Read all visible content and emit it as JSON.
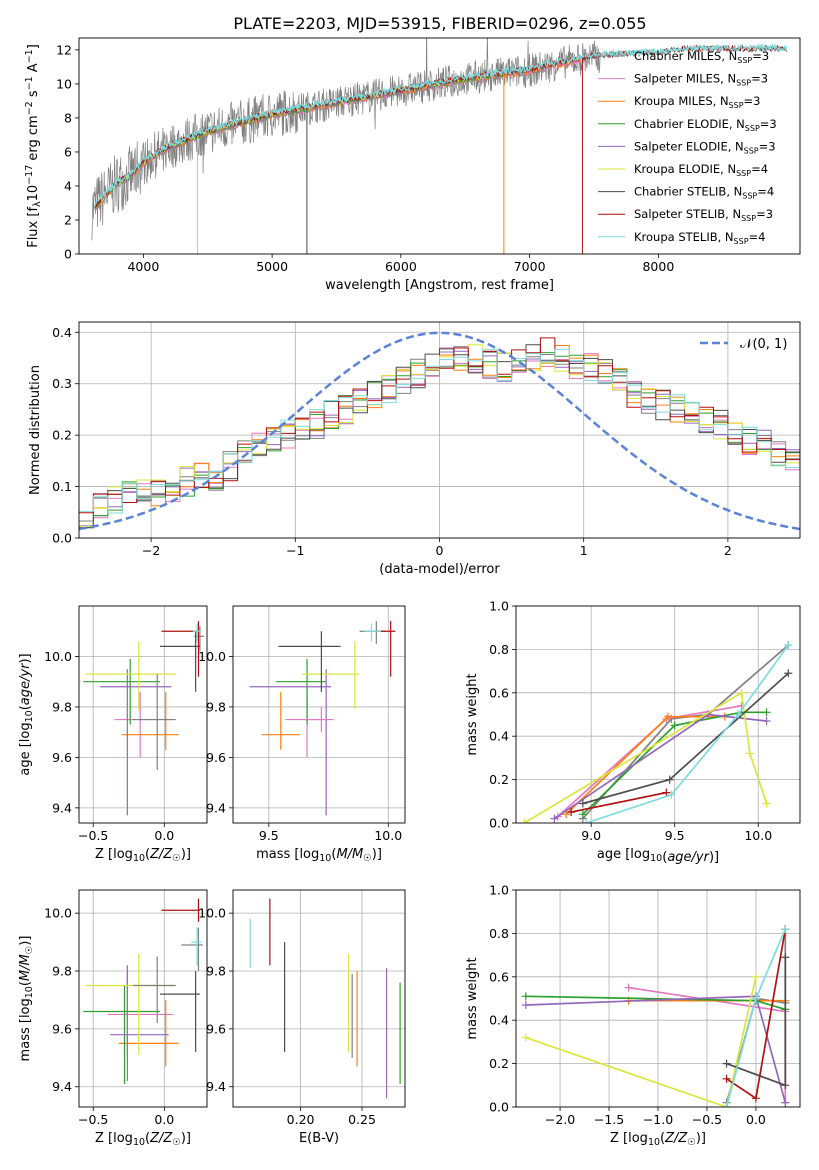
{
  "title": "PLATE=2203, MJD=53915, FIBERID=0296, z=0.055",
  "colors": {
    "Chabrier MILES": "#808080",
    "Salpeter MILES": "#e377c2",
    "Kroupa MILES": "#ff7f0e",
    "Chabrier ELODIE": "#2ca02c",
    "Salpeter ELODIE": "#9467bd",
    "Kroupa ELODIE": "#dbe63a",
    "Chabrier STELIB": "#4d4d4d",
    "Salpeter STELIB": "#b20f0f",
    "Kroupa STELIB": "#7fdbdb",
    "data": "#7f7f7f",
    "normal": "#5b84d6"
  },
  "chart_data": [
    {
      "id": "spectrum",
      "type": "line",
      "xlabel": "wavelength [Angstrom, rest frame]",
      "ylabel": "Flux [f_λ10^-17 erg cm^-2 s^-1 A^-1]",
      "xlim": [
        3500,
        9100
      ],
      "ylim": [
        0,
        12.7
      ],
      "xticks": [
        "4000",
        "5000",
        "6000",
        "7000",
        "8000"
      ],
      "yticks": [
        "0",
        "2",
        "4",
        "6",
        "8",
        "10",
        "12"
      ],
      "legend": [
        {
          "name": "Chabrier MILES",
          "n": "3"
        },
        {
          "name": "Salpeter MILES",
          "n": "3"
        },
        {
          "name": "Kroupa MILES",
          "n": "3"
        },
        {
          "name": "Chabrier ELODIE",
          "n": "3"
        },
        {
          "name": "Salpeter ELODIE",
          "n": "3"
        },
        {
          "name": "Kroupa ELODIE",
          "n": "4"
        },
        {
          "name": "Chabrier STELIB",
          "n": "4"
        },
        {
          "name": "Salpeter STELIB",
          "n": "3"
        },
        {
          "name": "Kroupa STELIB",
          "n": "4"
        }
      ],
      "legend_placement": "right",
      "continuum_model": [
        [
          3600,
          2.6
        ],
        [
          3700,
          3.4
        ],
        [
          3800,
          4.2
        ],
        [
          3900,
          4.6
        ],
        [
          4000,
          5.4
        ],
        [
          4200,
          6.3
        ],
        [
          4500,
          7.2
        ],
        [
          5000,
          8.2
        ],
        [
          5500,
          8.9
        ],
        [
          6000,
          9.6
        ],
        [
          6500,
          10.3
        ],
        [
          7000,
          10.8
        ],
        [
          7400,
          11.5
        ],
        [
          7700,
          11.7
        ],
        [
          8000,
          11.8
        ],
        [
          8200,
          12.0
        ]
      ],
      "model_end": {
        "Chabrier MILES": 7400,
        "Salpeter MILES": 7400,
        "Kroupa MILES": 7400,
        "Chabrier ELODIE": 6800,
        "Salpeter ELODIE": 6800,
        "Kroupa ELODIE": 6800,
        "Chabrier STELIB": 9000,
        "Salpeter STELIB": 9000,
        "Kroupa STELIB": 9000
      },
      "data_range": [
        3600,
        7550
      ],
      "dips": [
        [
          4420,
          0
        ],
        [
          5270,
          0
        ],
        [
          6800,
          0
        ],
        [
          7410,
          0
        ]
      ]
    },
    {
      "id": "residuals",
      "type": "line",
      "xlabel": "(data-model)/error",
      "ylabel": "Normed distribution",
      "xlim": [
        -2.5,
        2.5
      ],
      "ylim": [
        0,
        0.42
      ],
      "xticks": [
        "−2",
        "−1",
        "0",
        "1",
        "2"
      ],
      "yticks": [
        "0.0",
        "0.1",
        "0.2",
        "0.3",
        "0.4"
      ],
      "legend": [
        "𝒩(0, 1)"
      ],
      "legend_placement": "top-right",
      "bin_width": 0.1,
      "hist_base": [
        0.04,
        0.06,
        0.07,
        0.08,
        0.09,
        0.09,
        0.1,
        0.11,
        0.12,
        0.12,
        0.14,
        0.16,
        0.18,
        0.19,
        0.2,
        0.21,
        0.22,
        0.24,
        0.25,
        0.26,
        0.28,
        0.29,
        0.31,
        0.32,
        0.33,
        0.34,
        0.35,
        0.35,
        0.34,
        0.33,
        0.34,
        0.35,
        0.36,
        0.35,
        0.34,
        0.33,
        0.32,
        0.3,
        0.28,
        0.27,
        0.26,
        0.25,
        0.24,
        0.23,
        0.22,
        0.21,
        0.19,
        0.18,
        0.17,
        0.16,
        0.15,
        0.14,
        0.13,
        0.12,
        0.11,
        0.1,
        0.1,
        0.09,
        0.08,
        0.08,
        0.07,
        0.07,
        0.06,
        0.06,
        0.06,
        0.05,
        0.05,
        0.05,
        0.06,
        0.06
      ]
    },
    {
      "id": "z-age",
      "type": "scatter",
      "xlabel": "Z [log10(Z/Z☉)]",
      "ylabel": "age [log10(age/yr)]",
      "xlim": [
        -0.6,
        0.3
      ],
      "ylim": [
        9.34,
        10.2
      ],
      "xticks": [
        "−0.5",
        "0.0"
      ],
      "yticks": [
        "9.4",
        "9.6",
        "9.8",
        "10.0"
      ],
      "points": [
        {
          "model": "Chabrier MILES",
          "x": 0.25,
          "y": 10.08,
          "xlo": 0.21,
          "xhi": 0.28,
          "ylo": 10.02,
          "yhi": 10.12
        },
        {
          "model": "Salpeter MILES",
          "x": -0.17,
          "y": 9.75,
          "xlo": -0.35,
          "xhi": 0.05,
          "ylo": 9.6,
          "yhi": 9.86
        },
        {
          "model": "Kroupa MILES",
          "x": 0.01,
          "y": 9.69,
          "xlo": -0.3,
          "xhi": 0.1,
          "ylo": 9.63,
          "yhi": 9.86
        },
        {
          "model": "Chabrier ELODIE",
          "x": -0.24,
          "y": 9.9,
          "xlo": -0.57,
          "xhi": -0.03,
          "ylo": 9.73,
          "yhi": 9.99
        },
        {
          "model": "Salpeter ELODIE",
          "x": -0.26,
          "y": 9.88,
          "xlo": -0.45,
          "xhi": 0.05,
          "ylo": 9.37,
          "yhi": 9.95
        },
        {
          "model": "Kroupa ELODIE",
          "x": -0.18,
          "y": 9.93,
          "xlo": -0.55,
          "xhi": 0.08,
          "ylo": 9.79,
          "yhi": 10.06
        },
        {
          "model": "Chabrier STELIB",
          "x": 0.22,
          "y": 10.04,
          "xlo": -0.03,
          "xhi": 0.25,
          "ylo": 9.86,
          "yhi": 10.1
        },
        {
          "model": "Salpeter STELIB",
          "x": 0.24,
          "y": 10.1,
          "xlo": -0.02,
          "xhi": 0.25,
          "ylo": 9.92,
          "yhi": 10.14
        },
        {
          "model": "Kroupa STELIB",
          "x": 0.23,
          "y": 10.1,
          "xlo": 0.2,
          "xhi": 0.26,
          "ylo": 10.06,
          "yhi": 10.13
        },
        {
          "model": "Chabrier MILES",
          "x": -0.05,
          "y": 9.75,
          "xlo": -0.22,
          "xhi": 0.08,
          "ylo": 9.55,
          "yhi": 9.93
        }
      ]
    },
    {
      "id": "mass-age",
      "type": "scatter",
      "xlabel": "mass [log10(M/M☉)]",
      "ylabel": "",
      "xlim": [
        9.35,
        10.07
      ],
      "ylim": [
        9.34,
        10.2
      ],
      "xticks": [
        "9.5",
        "10.0"
      ],
      "yticks": [
        "9.4",
        "9.6",
        "9.8",
        "10.0"
      ],
      "points": [
        {
          "model": "Chabrier MILES",
          "x": 9.95,
          "y": 10.1,
          "xlo": 9.88,
          "xhi": 9.99,
          "ylo": 10.05,
          "yhi": 10.14
        },
        {
          "model": "Salpeter MILES",
          "x": 9.66,
          "y": 9.75,
          "xlo": 9.57,
          "xhi": 9.74,
          "ylo": 9.6,
          "yhi": 9.86
        },
        {
          "model": "Kroupa MILES",
          "x": 9.55,
          "y": 9.69,
          "xlo": 9.47,
          "xhi": 9.63,
          "ylo": 9.63,
          "yhi": 9.86
        },
        {
          "model": "Chabrier ELODIE",
          "x": 9.66,
          "y": 9.9,
          "xlo": 9.53,
          "xhi": 9.74,
          "ylo": 9.73,
          "yhi": 9.99
        },
        {
          "model": "Salpeter ELODIE",
          "x": 9.74,
          "y": 9.88,
          "xlo": 9.42,
          "xhi": 9.76,
          "ylo": 9.37,
          "yhi": 9.95
        },
        {
          "model": "Kroupa ELODIE",
          "x": 9.86,
          "y": 9.93,
          "xlo": 9.64,
          "xhi": 9.88,
          "ylo": 9.79,
          "yhi": 10.06
        },
        {
          "model": "Chabrier STELIB",
          "x": 9.72,
          "y": 10.04,
          "xlo": 9.54,
          "xhi": 9.8,
          "ylo": 9.86,
          "yhi": 10.1
        },
        {
          "model": "Salpeter STELIB",
          "x": 10.01,
          "y": 10.1,
          "xlo": 9.95,
          "xhi": 10.03,
          "ylo": 9.92,
          "yhi": 10.14
        },
        {
          "model": "Kroupa STELIB",
          "x": 9.93,
          "y": 10.1,
          "xlo": 9.9,
          "xhi": 9.97,
          "ylo": 10.06,
          "yhi": 10.13
        },
        {
          "model": "Salpeter MILES",
          "x": 9.72,
          "y": 9.75,
          "xlo": 9.65,
          "xhi": 9.77,
          "ylo": 9.7,
          "yhi": 9.8
        }
      ]
    },
    {
      "id": "age-massweight",
      "type": "line",
      "xlabel": "age [log10(age/yr)]",
      "ylabel": "mass weight",
      "xlim": [
        8.55,
        10.25
      ],
      "ylim": [
        0,
        1
      ],
      "xticks": [
        "9.0",
        "9.5",
        "10.0"
      ],
      "yticks": [
        "0.0",
        "0.2",
        "0.4",
        "0.6",
        "0.8",
        "1.0"
      ],
      "series": [
        {
          "model": "Chabrier MILES",
          "x": [
            8.95,
            9.48,
            9.7,
            10.18
          ],
          "y": [
            0.02,
            0.48,
            0.5,
            0.82
          ]
        },
        {
          "model": "Salpeter MILES",
          "x": [
            8.8,
            9.45,
            9.9
          ],
          "y": [
            0.03,
            0.48,
            0.54
          ]
        },
        {
          "model": "Kroupa MILES",
          "x": [
            8.85,
            9.46,
            9.8
          ],
          "y": [
            0.04,
            0.49,
            0.49
          ]
        },
        {
          "model": "Chabrier ELODIE",
          "x": [
            8.95,
            9.5,
            9.9,
            10.05
          ],
          "y": [
            0.04,
            0.45,
            0.51,
            0.51
          ]
        },
        {
          "model": "Salpeter ELODIE",
          "x": [
            8.78,
            9.7,
            10.05
          ],
          "y": [
            0.02,
            0.5,
            0.47
          ]
        },
        {
          "model": "Kroupa ELODIE",
          "x": [
            8.6,
            9.9,
            9.95,
            10.05
          ],
          "y": [
            0.0,
            0.6,
            0.32,
            0.09
          ]
        },
        {
          "model": "Chabrier STELIB",
          "x": [
            8.95,
            9.47,
            10.18
          ],
          "y": [
            0.09,
            0.2,
            0.69
          ]
        },
        {
          "model": "Salpeter STELIB",
          "x": [
            8.88,
            9.45
          ],
          "y": [
            0.05,
            0.14
          ]
        },
        {
          "model": "Kroupa STELIB",
          "x": [
            8.97,
            9.48,
            9.88,
            10.18
          ],
          "y": [
            0.0,
            0.13,
            0.5,
            0.82
          ]
        }
      ]
    },
    {
      "id": "z-mass",
      "type": "scatter",
      "xlabel": "Z [log10(Z/Z☉)]",
      "ylabel": "mass [log10(M/M☉)]",
      "xlim": [
        -0.6,
        0.3
      ],
      "ylim": [
        9.33,
        10.08
      ],
      "xticks": [
        "−0.5",
        "0.0"
      ],
      "yticks": [
        "9.4",
        "9.6",
        "9.8",
        "10.0"
      ],
      "points": [
        {
          "model": "Chabrier MILES",
          "x": 0.24,
          "y": 9.89,
          "xlo": 0.12,
          "xhi": 0.27,
          "ylo": 9.8,
          "yhi": 9.95
        },
        {
          "model": "Salpeter MILES",
          "x": -0.26,
          "y": 9.65,
          "xlo": -0.4,
          "xhi": 0.06,
          "ylo": 9.5,
          "yhi": 9.8
        },
        {
          "model": "Kroupa MILES",
          "x": 0.01,
          "y": 9.55,
          "xlo": -0.32,
          "xhi": 0.1,
          "ylo": 9.47,
          "yhi": 9.7
        },
        {
          "model": "Chabrier ELODIE",
          "x": -0.28,
          "y": 9.66,
          "xlo": -0.57,
          "xhi": -0.03,
          "ylo": 9.41,
          "yhi": 9.75
        },
        {
          "model": "Salpeter ELODIE",
          "x": -0.26,
          "y": 9.58,
          "xlo": -0.38,
          "xhi": 0.03,
          "ylo": 9.42,
          "yhi": 9.82
        },
        {
          "model": "Kroupa ELODIE",
          "x": -0.18,
          "y": 9.75,
          "xlo": -0.55,
          "xhi": 0.08,
          "ylo": 9.51,
          "yhi": 9.86
        },
        {
          "model": "Chabrier STELIB",
          "x": 0.22,
          "y": 9.72,
          "xlo": -0.03,
          "xhi": 0.25,
          "ylo": 9.52,
          "yhi": 9.8
        },
        {
          "model": "Salpeter STELIB",
          "x": 0.24,
          "y": 10.01,
          "xlo": -0.02,
          "xhi": 0.25,
          "ylo": 9.97,
          "yhi": 10.05
        },
        {
          "model": "Kroupa STELIB",
          "x": 0.23,
          "y": 9.9,
          "xlo": 0.19,
          "xhi": 0.26,
          "ylo": 9.82,
          "yhi": 9.95
        },
        {
          "model": "Chabrier MILES",
          "x": -0.05,
          "y": 9.75,
          "xlo": -0.22,
          "xhi": 0.08,
          "ylo": 9.62,
          "yhi": 9.85
        }
      ]
    },
    {
      "id": "ebv-mass",
      "type": "scatter",
      "xlabel": "E(B-V)",
      "ylabel": "",
      "xlim": [
        0.145,
        0.285
      ],
      "ylim": [
        9.33,
        10.08
      ],
      "xticks": [
        "0.20",
        "0.25"
      ],
      "yticks": [
        "9.4",
        "9.6",
        "9.8",
        "10.0"
      ],
      "points": [
        {
          "model": "Kroupa STELIB",
          "x": 0.159,
          "ylo": 9.81,
          "yhi": 9.98
        },
        {
          "model": "Salpeter STELIB",
          "x": 0.175,
          "ylo": 9.82,
          "yhi": 10.05
        },
        {
          "model": "Chabrier STELIB",
          "x": 0.187,
          "ylo": 9.52,
          "yhi": 9.9
        },
        {
          "model": "Kroupa ELODIE",
          "x": 0.239,
          "ylo": 9.52,
          "yhi": 9.86
        },
        {
          "model": "Chabrier MILES",
          "x": 0.242,
          "ylo": 9.5,
          "yhi": 9.79
        },
        {
          "model": "Kroupa MILES",
          "x": 0.246,
          "ylo": 9.47,
          "yhi": 9.8
        },
        {
          "model": "Salpeter ELODIE",
          "x": 0.27,
          "ylo": 9.36,
          "yhi": 9.81
        },
        {
          "model": "Chabrier ELODIE",
          "x": 0.281,
          "ylo": 9.41,
          "yhi": 9.76
        }
      ]
    },
    {
      "id": "z-massweight",
      "type": "line",
      "xlabel": "Z [log10(Z/Z☉)]",
      "ylabel": "mass weight",
      "xlim": [
        -2.45,
        0.45
      ],
      "ylim": [
        0,
        1
      ],
      "xticks": [
        "−2.0",
        "−1.5",
        "−1.0",
        "−0.5",
        "0.0"
      ],
      "yticks": [
        "0.0",
        "0.2",
        "0.4",
        "0.6",
        "0.8",
        "1.0"
      ],
      "series": [
        {
          "model": "Chabrier MILES",
          "x": [
            -0.3,
            0.0,
            0.3,
            0.3
          ],
          "y": [
            0.02,
            0.5,
            0.48,
            0.82
          ]
        },
        {
          "model": "Salpeter MILES",
          "x": [
            -1.3,
            0.3,
            0.3
          ],
          "y": [
            0.55,
            0.44,
            0.02
          ]
        },
        {
          "model": "Kroupa MILES",
          "x": [
            -1.3,
            0.0,
            0.3
          ],
          "y": [
            0.49,
            0.49,
            0.49
          ]
        },
        {
          "model": "Chabrier ELODIE",
          "x": [
            -2.35,
            0.0,
            0.3
          ],
          "y": [
            0.51,
            0.49,
            0.45
          ]
        },
        {
          "model": "Salpeter ELODIE",
          "x": [
            -2.35,
            0.0,
            0.3
          ],
          "y": [
            0.47,
            0.51,
            0.02
          ]
        },
        {
          "model": "Kroupa ELODIE",
          "x": [
            -2.35,
            -0.3,
            0.0
          ],
          "y": [
            0.32,
            0.0,
            0.6
          ]
        },
        {
          "model": "Chabrier STELIB",
          "x": [
            -0.3,
            0.3,
            0.3
          ],
          "y": [
            0.2,
            0.1,
            0.69
          ]
        },
        {
          "model": "Salpeter STELIB",
          "x": [
            -0.3,
            0.0,
            0.3
          ],
          "y": [
            0.13,
            0.04,
            0.82
          ]
        },
        {
          "model": "Kroupa STELIB",
          "x": [
            -0.3,
            0.0,
            0.3
          ],
          "y": [
            0.0,
            0.5,
            0.82
          ]
        }
      ]
    }
  ]
}
